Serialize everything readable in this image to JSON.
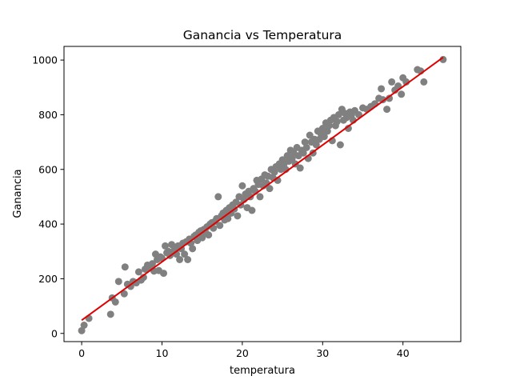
{
  "chart_data": {
    "type": "scatter",
    "title": "Ganancia vs Temperatura",
    "xlabel": "temperatura",
    "ylabel": "Ganancia",
    "xlim": [
      -2.2,
      47.2
    ],
    "ylim": [
      -30,
      1050
    ],
    "xticks": [
      0,
      10,
      20,
      30,
      40
    ],
    "yticks": [
      0,
      200,
      400,
      600,
      800,
      1000
    ],
    "grid": false,
    "legend": "none",
    "colors": {
      "points": "#808080",
      "fit": "#e00000",
      "axis": "#000000"
    },
    "fit_line": {
      "x": [
        0,
        45
      ],
      "y": [
        48,
        1010
      ]
    },
    "series": [
      {
        "marker": "circle",
        "points": [
          [
            0,
            10
          ],
          [
            0.3,
            30
          ],
          [
            0.9,
            55
          ],
          [
            3.6,
            70
          ],
          [
            3.8,
            130
          ],
          [
            4.2,
            115
          ],
          [
            4.6,
            190
          ],
          [
            5.3,
            145
          ],
          [
            5.4,
            243
          ],
          [
            5.7,
            180
          ],
          [
            6.1,
            172
          ],
          [
            6.4,
            190
          ],
          [
            6.8,
            185
          ],
          [
            7.1,
            225
          ],
          [
            7.4,
            195
          ],
          [
            7.7,
            205
          ],
          [
            7.9,
            235
          ],
          [
            8.2,
            250
          ],
          [
            8.5,
            240
          ],
          [
            8.8,
            255
          ],
          [
            9.0,
            228
          ],
          [
            9.2,
            290
          ],
          [
            9.4,
            270
          ],
          [
            9.6,
            230
          ],
          [
            9.8,
            280
          ],
          [
            10.0,
            275
          ],
          [
            10.2,
            220
          ],
          [
            10.4,
            320
          ],
          [
            10.6,
            295
          ],
          [
            10.8,
            300
          ],
          [
            11.0,
            285
          ],
          [
            11.2,
            325
          ],
          [
            11.4,
            300
          ],
          [
            11.6,
            310
          ],
          [
            11.8,
            290
          ],
          [
            12.0,
            320
          ],
          [
            12.2,
            270
          ],
          [
            12.4,
            310
          ],
          [
            12.6,
            330
          ],
          [
            12.8,
            290
          ],
          [
            13.0,
            335
          ],
          [
            13.2,
            270
          ],
          [
            13.4,
            345
          ],
          [
            13.6,
            330
          ],
          [
            13.8,
            310
          ],
          [
            14.0,
            355
          ],
          [
            14.2,
            360
          ],
          [
            14.4,
            340
          ],
          [
            14.6,
            370
          ],
          [
            14.8,
            375
          ],
          [
            15.0,
            350
          ],
          [
            15.2,
            380
          ],
          [
            15.4,
            370
          ],
          [
            15.6,
            390
          ],
          [
            15.8,
            360
          ],
          [
            16.0,
            400
          ],
          [
            16.2,
            405
          ],
          [
            16.4,
            385
          ],
          [
            16.6,
            410
          ],
          [
            16.8,
            420
          ],
          [
            17.0,
            500
          ],
          [
            17.2,
            395
          ],
          [
            17.4,
            430
          ],
          [
            17.6,
            440
          ],
          [
            17.8,
            415
          ],
          [
            18.0,
            450
          ],
          [
            18.2,
            420
          ],
          [
            18.4,
            460
          ],
          [
            18.6,
            440
          ],
          [
            18.8,
            470
          ],
          [
            19.0,
            455
          ],
          [
            19.2,
            480
          ],
          [
            19.4,
            430
          ],
          [
            19.6,
            500
          ],
          [
            19.8,
            470
          ],
          [
            20.0,
            540
          ],
          [
            20.2,
            490
          ],
          [
            20.4,
            510
          ],
          [
            20.6,
            460
          ],
          [
            20.8,
            520
          ],
          [
            21.0,
            500
          ],
          [
            21.2,
            450
          ],
          [
            21.4,
            530
          ],
          [
            21.6,
            520
          ],
          [
            21.8,
            560
          ],
          [
            22.0,
            545
          ],
          [
            22.2,
            500
          ],
          [
            22.4,
            565
          ],
          [
            22.6,
            540
          ],
          [
            22.8,
            580
          ],
          [
            23.0,
            550
          ],
          [
            23.2,
            575
          ],
          [
            23.4,
            530
          ],
          [
            23.6,
            600
          ],
          [
            23.8,
            570
          ],
          [
            24.0,
            590
          ],
          [
            24.2,
            610
          ],
          [
            24.4,
            560
          ],
          [
            24.6,
            620
          ],
          [
            24.8,
            600
          ],
          [
            25.0,
            635
          ],
          [
            25.2,
            620
          ],
          [
            25.4,
            600
          ],
          [
            25.6,
            650
          ],
          [
            25.8,
            630
          ],
          [
            26.0,
            670
          ],
          [
            26.2,
            640
          ],
          [
            26.4,
            660
          ],
          [
            26.6,
            620
          ],
          [
            26.8,
            680
          ],
          [
            27.0,
            650
          ],
          [
            27.2,
            605
          ],
          [
            27.4,
            670
          ],
          [
            27.6,
            660
          ],
          [
            27.8,
            700
          ],
          [
            28.0,
            680
          ],
          [
            28.2,
            640
          ],
          [
            28.4,
            725
          ],
          [
            28.6,
            700
          ],
          [
            28.8,
            660
          ],
          [
            29.0,
            710
          ],
          [
            29.2,
            690
          ],
          [
            29.4,
            740
          ],
          [
            29.6,
            710
          ],
          [
            29.8,
            730
          ],
          [
            30.0,
            750
          ],
          [
            30.2,
            720
          ],
          [
            30.4,
            770
          ],
          [
            30.6,
            740
          ],
          [
            30.8,
            760
          ],
          [
            31.0,
            780
          ],
          [
            31.2,
            705
          ],
          [
            31.4,
            790
          ],
          [
            31.6,
            760
          ],
          [
            31.8,
            775
          ],
          [
            32.0,
            800
          ],
          [
            32.2,
            690
          ],
          [
            32.4,
            820
          ],
          [
            32.6,
            780
          ],
          [
            32.8,
            805
          ],
          [
            33.0,
            790
          ],
          [
            33.2,
            750
          ],
          [
            33.4,
            810
          ],
          [
            33.6,
            800
          ],
          [
            33.8,
            780
          ],
          [
            34.0,
            815
          ],
          [
            34.5,
            800
          ],
          [
            35.0,
            825
          ],
          [
            35.5,
            820
          ],
          [
            36.0,
            830
          ],
          [
            36.5,
            840
          ],
          [
            37.0,
            860
          ],
          [
            37.3,
            895
          ],
          [
            37.5,
            855
          ],
          [
            38.0,
            820
          ],
          [
            38.3,
            860
          ],
          [
            38.6,
            920
          ],
          [
            39.0,
            890
          ],
          [
            39.4,
            905
          ],
          [
            39.8,
            875
          ],
          [
            40.0,
            935
          ],
          [
            40.4,
            920
          ],
          [
            41.8,
            965
          ],
          [
            42.2,
            960
          ],
          [
            42.6,
            920
          ],
          [
            45.0,
            1002
          ]
        ]
      }
    ]
  }
}
